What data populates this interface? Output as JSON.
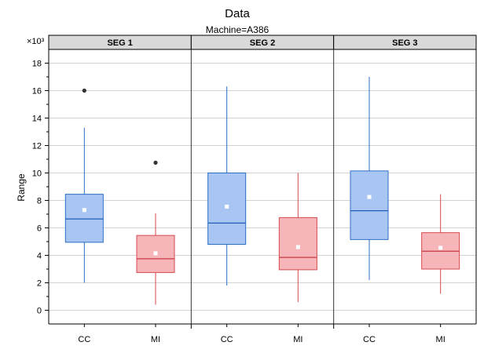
{
  "chart_data": {
    "type": "box",
    "title": "Data",
    "subtitle": "Machine=A386",
    "ylabel": "Range",
    "yunit": "×10³",
    "ylim": [
      -1,
      19
    ],
    "yticks": [
      0,
      2,
      4,
      6,
      8,
      10,
      12,
      14,
      16,
      18
    ],
    "grid": true,
    "categories": [
      "CC",
      "MI"
    ],
    "colors": {
      "CC": {
        "fill": "#a9c6f2",
        "stroke": "#2c6fc4",
        "median": "#1f5fb5"
      },
      "MI": {
        "fill": "#f6b5b8",
        "stroke": "#d64a4f",
        "median": "#c83a40"
      },
      "mean": "#ffffff",
      "outlier": "#333333",
      "panel_header": "#d9d9d9"
    },
    "panels": [
      {
        "label": "SEG 1",
        "boxes": [
          {
            "category": "CC",
            "whisker_low": 2.0,
            "q1": 4.95,
            "median": 6.65,
            "q3": 8.45,
            "whisker_high": 13.3,
            "mean": 7.3,
            "outliers": [
              16.0
            ]
          },
          {
            "category": "MI",
            "whisker_low": 0.4,
            "q1": 2.75,
            "median": 3.75,
            "q3": 5.45,
            "whisker_high": 7.05,
            "mean": 4.15,
            "outliers": [
              10.75
            ]
          }
        ]
      },
      {
        "label": "SEG 2",
        "boxes": [
          {
            "category": "CC",
            "whisker_low": 1.8,
            "q1": 4.8,
            "median": 6.35,
            "q3": 10.0,
            "whisker_high": 16.3,
            "mean": 7.55,
            "outliers": []
          },
          {
            "category": "MI",
            "whisker_low": 0.6,
            "q1": 2.95,
            "median": 3.85,
            "q3": 6.75,
            "whisker_high": 10.0,
            "mean": 4.6,
            "outliers": []
          }
        ]
      },
      {
        "label": "SEG 3",
        "boxes": [
          {
            "category": "CC",
            "whisker_low": 2.2,
            "q1": 5.15,
            "median": 7.25,
            "q3": 10.15,
            "whisker_high": 17.0,
            "mean": 8.25,
            "outliers": []
          },
          {
            "category": "MI",
            "whisker_low": 1.2,
            "q1": 3.0,
            "median": 4.3,
            "q3": 5.65,
            "whisker_high": 8.45,
            "mean": 4.55,
            "outliers": []
          }
        ]
      }
    ]
  }
}
